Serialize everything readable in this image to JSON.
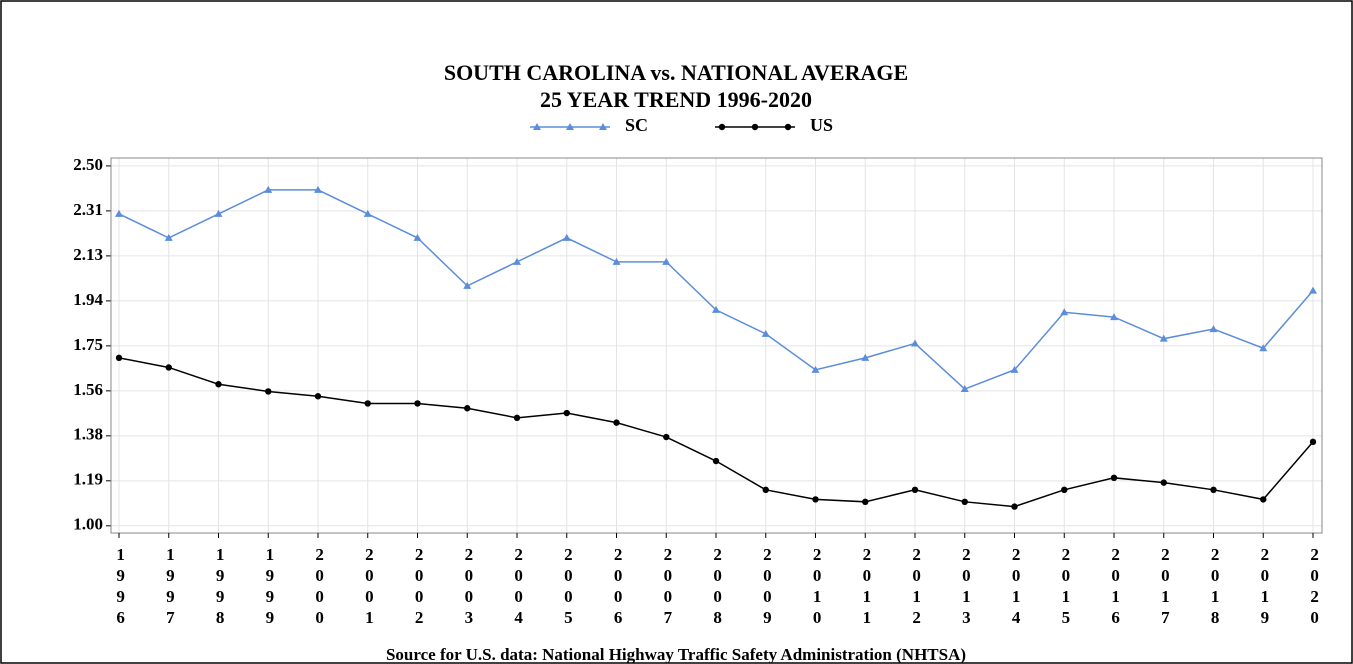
{
  "chart_data": {
    "type": "line",
    "title": "SOUTH CAROLINA vs. NATIONAL AVERAGE",
    "subtitle": "25 YEAR TREND 1996-2020",
    "source": "Source for U.S. data: National Highway Traffic Safety Administration (NHTSA)",
    "categories": [
      "1996",
      "1997",
      "1998",
      "1999",
      "2000",
      "2001",
      "2002",
      "2003",
      "2004",
      "2005",
      "2006",
      "2007",
      "2008",
      "2009",
      "2010",
      "2011",
      "2012",
      "2013",
      "2014",
      "2015",
      "2016",
      "2017",
      "2018",
      "2019",
      "2020"
    ],
    "series": [
      {
        "name": "SC",
        "color": "#5b8ddb",
        "marker": "triangle",
        "values": [
          2.3,
          2.2,
          2.3,
          2.4,
          2.4,
          2.3,
          2.2,
          2.0,
          2.1,
          2.2,
          2.1,
          2.1,
          1.9,
          1.8,
          1.65,
          1.7,
          1.76,
          1.57,
          1.65,
          1.89,
          1.87,
          1.78,
          1.82,
          1.74,
          1.98
        ]
      },
      {
        "name": "US",
        "color": "#000000",
        "marker": "circle",
        "values": [
          1.7,
          1.66,
          1.59,
          1.56,
          1.54,
          1.51,
          1.51,
          1.49,
          1.45,
          1.47,
          1.43,
          1.37,
          1.27,
          1.15,
          1.11,
          1.1,
          1.15,
          1.1,
          1.08,
          1.15,
          1.2,
          1.18,
          1.15,
          1.11,
          1.35
        ]
      }
    ],
    "ylim": [
      0.97,
      2.533
    ],
    "yticks": [
      {
        "value": 1,
        "label": "1.00"
      },
      {
        "value": 1.1875,
        "label": "1.19"
      },
      {
        "value": 1.375,
        "label": "1.38"
      },
      {
        "value": 1.5625,
        "label": "1.56"
      },
      1.75,
      {
        "value": 1.9375,
        "label": "1.94"
      },
      {
        "value": 2.125,
        "label": "2.13"
      },
      {
        "value": 2.3125,
        "label": "2.31"
      },
      {
        "value": 2.5,
        "label": "2.50"
      }
    ],
    "grid": true,
    "legend": "top"
  }
}
